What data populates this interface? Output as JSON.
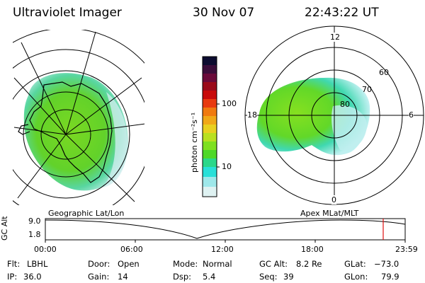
{
  "header": {
    "instrument": "Ultraviolet Imager",
    "date": "30 Nov 07",
    "time": "22:43:22 UT"
  },
  "left_panel": {
    "label": "Geographic Lat/Lon"
  },
  "right_panel": {
    "label": "Apex MLat/MLT",
    "mlt_labels": [
      "12",
      "18",
      "6",
      "0"
    ],
    "lat_labels": [
      "60",
      "70",
      "80"
    ]
  },
  "colorbar": {
    "unit_label": "photon cm⁻²s⁻¹",
    "ticks": [
      "100",
      "10"
    ],
    "colors": [
      "#0c0c30",
      "#3a0d3a",
      "#6a0a3a",
      "#9a0a1a",
      "#c80a0a",
      "#e83a10",
      "#f07a10",
      "#f0a818",
      "#e8d020",
      "#b8e020",
      "#7ee020",
      "#4ed828",
      "#2ad88a",
      "#28e0d8",
      "#9ee8ea",
      "#dff2f2"
    ]
  },
  "timeline": {
    "y_axis_label": "GC Alt",
    "y_ticks": [
      "9.0",
      "1.8"
    ],
    "x_ticks": [
      "00:00",
      "06:00",
      "12:00",
      "18:00",
      "23:59"
    ],
    "current_marker_hour": 22.72,
    "marker_color": "#e01010"
  },
  "status": {
    "flt_label": "Flt:",
    "flt_value": "LBHL",
    "ip_label": "IP:",
    "ip_value": "36.0",
    "door_label": "Door:",
    "door_value": "Open",
    "gain_label": "Gain:",
    "gain_value": "14",
    "mode_label": "Mode:",
    "mode_value": "Normal",
    "dsp_label": "Dsp:",
    "dsp_value": "5.4",
    "gcalt_label": "GC Alt:",
    "gcalt_value": "8.2 Re",
    "seq_label": "Seq:",
    "seq_value": "39",
    "glat_label": "GLat:",
    "glat_value": "−73.0",
    "glon_label": "GLon:",
    "glon_value": "79.9"
  }
}
